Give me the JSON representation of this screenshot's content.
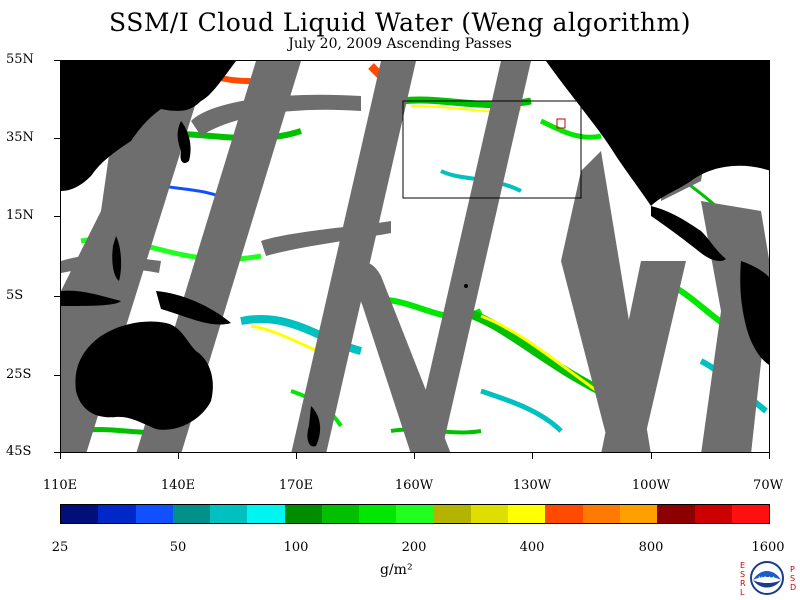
{
  "title": "SSM/I Cloud Liquid Water (Weng algorithm)",
  "subtitle": "July 20, 2009  Ascending Passes",
  "map": {
    "lat_labels": [
      "55N",
      "35N",
      "15N",
      "5S",
      "25S",
      "45S"
    ],
    "lon_labels": [
      "110E",
      "140E",
      "170E",
      "160W",
      "130W",
      "100W",
      "70W"
    ],
    "colors": {
      "no_data_swath": "#6e6e6e",
      "land": "#000000",
      "clear_ocean": "#ffffff"
    }
  },
  "legend": {
    "tick_labels": [
      "25",
      "50",
      "100",
      "200",
      "400",
      "800",
      "1600"
    ],
    "units": "g/m²",
    "colors": [
      "#000f7a",
      "#0028c8",
      "#1050ff",
      "#00908c",
      "#00c0c0",
      "#00f4f0",
      "#008c00",
      "#00c000",
      "#00e800",
      "#20ff20",
      "#b4b400",
      "#dede00",
      "#ffff00",
      "#ff4a00",
      "#ff7a00",
      "#ffa000",
      "#8c0000",
      "#cc0000",
      "#ff1010"
    ]
  },
  "logo": {
    "left_letters": [
      "E",
      "S",
      "R",
      "L"
    ],
    "right_letters": [
      "P",
      "S",
      "D"
    ],
    "center_text": "NOAA"
  }
}
